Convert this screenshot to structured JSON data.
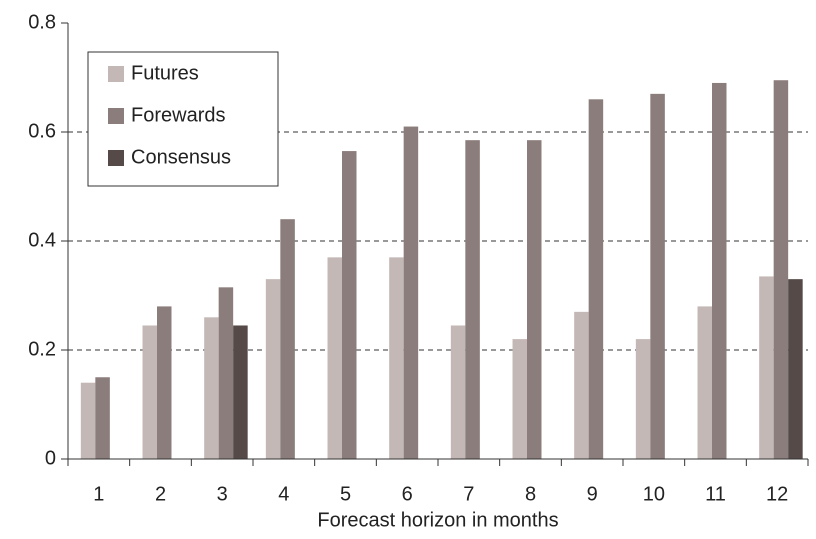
{
  "chart_data": {
    "type": "bar",
    "x_label": "Forecast horizon in months",
    "categories": [
      "1",
      "2",
      "3",
      "4",
      "5",
      "6",
      "7",
      "8",
      "9",
      "10",
      "11",
      "12"
    ],
    "series": [
      {
        "name": "Futures",
        "color": "#c4b8b6",
        "values": [
          0.14,
          0.245,
          0.26,
          0.33,
          0.37,
          0.37,
          0.245,
          0.22,
          0.27,
          0.22,
          0.28,
          0.335
        ]
      },
      {
        "name": "Forewards",
        "color": "#8b7d7b",
        "values": [
          0.15,
          0.28,
          0.315,
          0.44,
          0.565,
          0.61,
          0.585,
          0.585,
          0.66,
          0.67,
          0.69,
          0.695
        ]
      },
      {
        "name": "Consensus",
        "color": "#554a48",
        "values": [
          null,
          null,
          0.245,
          null,
          null,
          null,
          null,
          null,
          null,
          null,
          null,
          0.33
        ]
      }
    ],
    "ylim": [
      0,
      0.8
    ],
    "yticks": [
      0,
      0.2,
      0.4,
      0.6,
      0.8
    ],
    "grid": true,
    "legend": "upper left"
  }
}
